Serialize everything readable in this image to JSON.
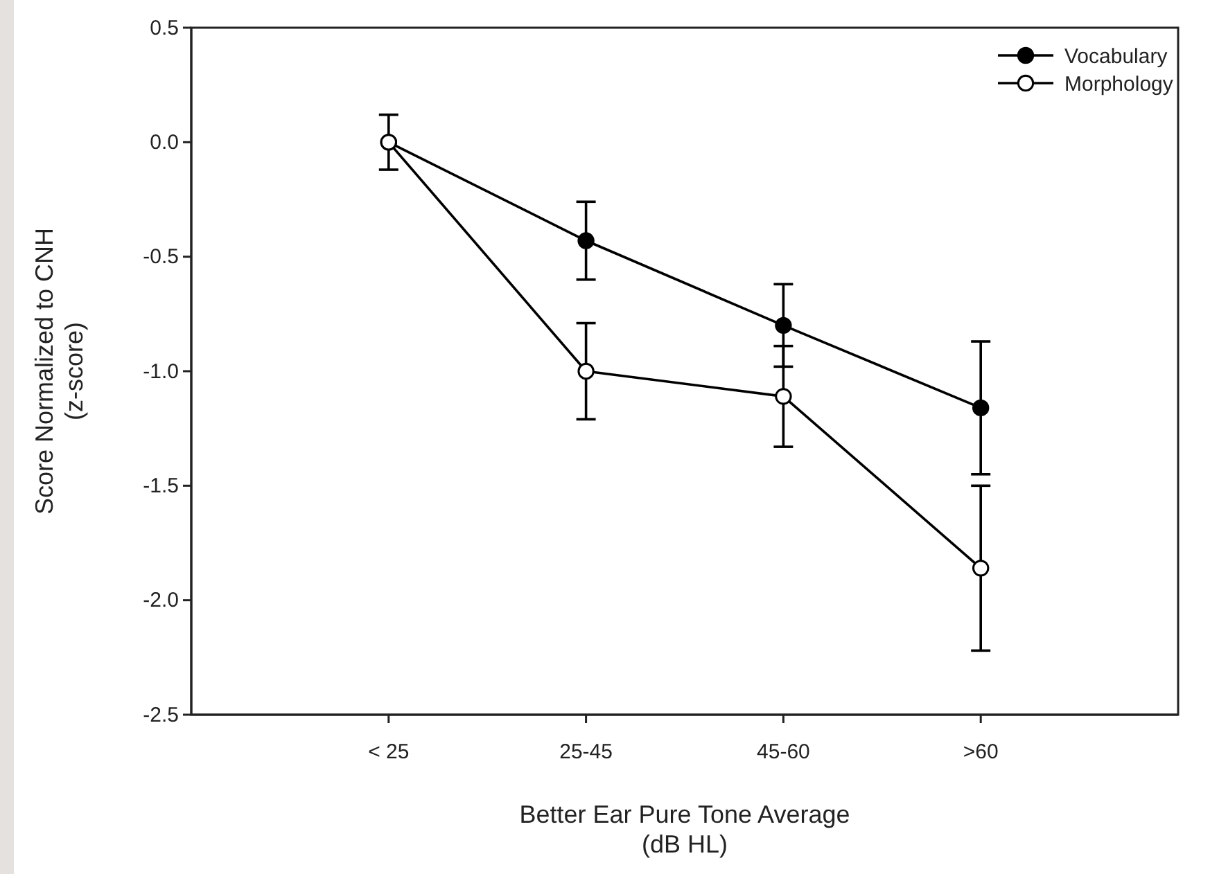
{
  "chart_data": {
    "type": "line",
    "xlabel": "Better Ear Pure Tone Average\n(dB HL)",
    "ylabel": "Score Normalized to CNH\n(z-score)",
    "categories": [
      "< 25",
      "25-45",
      "45-60",
      ">60"
    ],
    "series": [
      {
        "name": "Vocabulary",
        "color": "#000000",
        "marker": "circle",
        "values": [
          0,
          -0.43,
          -0.8,
          -1.16
        ],
        "errors": [
          null,
          0.17,
          0.18,
          0.29
        ]
      },
      {
        "name": "Morphology",
        "color": "#000000",
        "marker": "circle",
        "values": [
          0,
          -1.0,
          -1.11,
          -1.86
        ],
        "errors": [
          0.12,
          0.21,
          0.22,
          0.36
        ]
      }
    ],
    "ylim": [
      -2.5,
      0.5
    ],
    "yticks": [
      {
        "value": -2.5,
        "label": "-2.5"
      },
      {
        "value": -2,
        "label": "-2.0"
      },
      {
        "value": -1.5,
        "label": "-1.5"
      },
      {
        "value": -1,
        "label": "-1.0"
      },
      {
        "value": -0.5,
        "label": "-0.5"
      },
      {
        "value": 0,
        "label": "0.0"
      },
      {
        "value": 0.5,
        "label": "0.5"
      }
    ],
    "legend": "top right",
    "grid": false
  }
}
